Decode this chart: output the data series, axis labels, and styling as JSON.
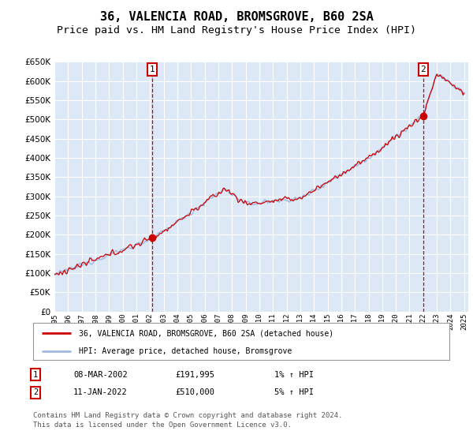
{
  "title": "36, VALENCIA ROAD, BROMSGROVE, B60 2SA",
  "subtitle": "Price paid vs. HM Land Registry's House Price Index (HPI)",
  "ylim": [
    0,
    650000
  ],
  "yticks": [
    0,
    50000,
    100000,
    150000,
    200000,
    250000,
    300000,
    350000,
    400000,
    450000,
    500000,
    550000,
    600000,
    650000
  ],
  "bg_color": "#dce8f5",
  "grid_color": "#ffffff",
  "line_color_hpi": "#a0b8e0",
  "line_color_price": "#cc0000",
  "annotation1_date": "08-MAR-2002",
  "annotation1_price": 191995,
  "annotation1_hpi": "1% ↑ HPI",
  "annotation2_date": "11-JAN-2022",
  "annotation2_price": 510000,
  "annotation2_hpi": "5% ↑ HPI",
  "legend_label1": "36, VALENCIA ROAD, BROMSGROVE, B60 2SA (detached house)",
  "legend_label2": "HPI: Average price, detached house, Bromsgrove",
  "footer": "Contains HM Land Registry data © Crown copyright and database right 2024.\nThis data is licensed under the Open Government Licence v3.0.",
  "title_fontsize": 11,
  "subtitle_fontsize": 9.5
}
